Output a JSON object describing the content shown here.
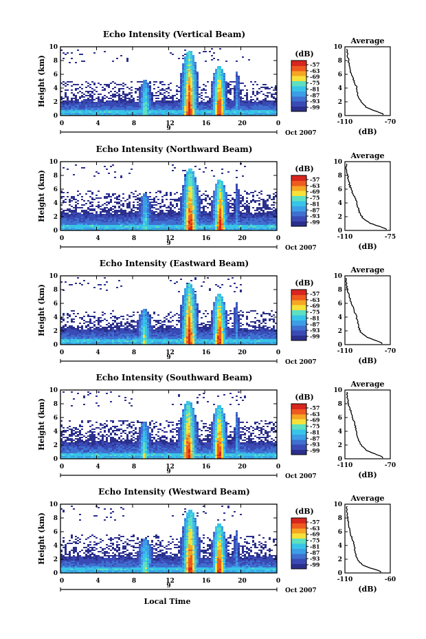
{
  "figure": {
    "x_axis_title": "Local Time",
    "x_ticks": [
      "0",
      "4",
      "8",
      "12",
      "16",
      "20",
      "0"
    ],
    "day_label": "9",
    "date_label": "Oct 2007",
    "y_label": "Height (km)",
    "y_ticks": [
      "0",
      "2",
      "4",
      "6",
      "8",
      "10"
    ],
    "colorbar_unit": "(dB)",
    "colorbar_ticks": [
      "-57",
      "-63",
      "-69",
      "-75",
      "-81",
      "-87",
      "-93",
      "-99"
    ],
    "profile_title": "Average",
    "profile_xlabel": "(dB)",
    "profile_y_ticks": [
      "0",
      "2",
      "4",
      "6",
      "8",
      "10"
    ],
    "colors": {
      "colormap": [
        "#2b2f8c",
        "#3a4ab5",
        "#3f6fd0",
        "#3d9ee6",
        "#38c4e8",
        "#5ee0c0",
        "#f6e13a",
        "#f5a623",
        "#ef5a1f",
        "#d7261e"
      ],
      "background": "#ffffff",
      "axis": "#000000"
    }
  },
  "chart_data": [
    {
      "type": "heatmap",
      "title": "Echo Intensity (Vertical Beam)",
      "xlabel": "Local Time",
      "ylabel": "Height (km)",
      "xlim": [
        0,
        24
      ],
      "ylim": [
        0,
        10
      ],
      "clim": [
        -99,
        -57
      ],
      "base_top_km": 2.3,
      "upper_layer_km": [
        2.4,
        4.9
      ],
      "upper_layer_density": 0.45,
      "cells": [
        {
          "t": 9.4,
          "top": 5.2,
          "w": 0.8,
          "peak": -72
        },
        {
          "t": 14.3,
          "top": 9.5,
          "w": 1.1,
          "peak": -57
        },
        {
          "t": 17.6,
          "top": 7.3,
          "w": 1.0,
          "peak": -57
        },
        {
          "t": 19.6,
          "top": 6.5,
          "w": 0.35,
          "peak": -81
        }
      ]
    },
    {
      "type": "heatmap",
      "title": "Echo Intensity (Northward Beam)",
      "xlabel": "Local Time",
      "ylabel": "Height (km)",
      "xlim": [
        0,
        24
      ],
      "ylim": [
        0,
        10
      ],
      "clim": [
        -99,
        -57
      ],
      "base_top_km": 2.6,
      "upper_layer_km": [
        2.5,
        5.8
      ],
      "upper_layer_density": 0.55,
      "cells": [
        {
          "t": 9.4,
          "top": 5.5,
          "w": 0.8,
          "peak": -75
        },
        {
          "t": 14.4,
          "top": 9.0,
          "w": 1.1,
          "peak": -57
        },
        {
          "t": 17.7,
          "top": 7.5,
          "w": 1.0,
          "peak": -57
        },
        {
          "t": 19.6,
          "top": 6.8,
          "w": 0.35,
          "peak": -84
        }
      ]
    },
    {
      "type": "heatmap",
      "title": "Echo Intensity (Eastward Beam)",
      "xlabel": "Local Time",
      "ylabel": "Height (km)",
      "xlim": [
        0,
        24
      ],
      "ylim": [
        0,
        10
      ],
      "clim": [
        -99,
        -57
      ],
      "base_top_km": 2.5,
      "upper_layer_km": [
        2.4,
        5.0
      ],
      "upper_layer_density": 0.45,
      "cells": [
        {
          "t": 9.3,
          "top": 5.3,
          "w": 0.9,
          "peak": -72
        },
        {
          "t": 14.3,
          "top": 9.0,
          "w": 1.1,
          "peak": -57
        },
        {
          "t": 17.6,
          "top": 7.5,
          "w": 1.0,
          "peak": -57
        },
        {
          "t": 19.5,
          "top": 6.3,
          "w": 0.35,
          "peak": -84
        }
      ]
    },
    {
      "type": "heatmap",
      "title": "Echo Intensity (Southward Beam)",
      "xlabel": "Local Time",
      "ylabel": "Height (km)",
      "xlim": [
        0,
        24
      ],
      "ylim": [
        0,
        10
      ],
      "clim": [
        -99,
        -57
      ],
      "base_top_km": 2.6,
      "upper_layer_km": [
        2.5,
        5.6
      ],
      "upper_layer_density": 0.55,
      "cells": [
        {
          "t": 9.3,
          "top": 5.5,
          "w": 0.8,
          "peak": -72
        },
        {
          "t": 14.2,
          "top": 8.5,
          "w": 1.1,
          "peak": -57
        },
        {
          "t": 17.6,
          "top": 7.8,
          "w": 1.0,
          "peak": -57
        },
        {
          "t": 19.6,
          "top": 6.8,
          "w": 0.35,
          "peak": -81
        }
      ]
    },
    {
      "type": "heatmap",
      "title": "Echo Intensity (Westward Beam)",
      "xlabel": "Local Time",
      "ylabel": "Height (km)",
      "xlim": [
        0,
        24
      ],
      "ylim": [
        0,
        10
      ],
      "clim": [
        -99,
        -57
      ],
      "base_top_km": 2.5,
      "upper_layer_km": [
        2.4,
        5.5
      ],
      "upper_layer_density": 0.5,
      "cells": [
        {
          "t": 9.4,
          "top": 5.0,
          "w": 1.0,
          "peak": -72
        },
        {
          "t": 14.4,
          "top": 9.3,
          "w": 1.1,
          "peak": -57
        },
        {
          "t": 17.6,
          "top": 7.2,
          "w": 1.0,
          "peak": -57
        },
        {
          "t": 19.5,
          "top": 6.3,
          "w": 0.35,
          "peak": -84
        }
      ]
    },
    {
      "type": "line",
      "title": "Average",
      "xlabel": "(dB)",
      "ylabel": "",
      "xlim": [
        -110,
        -70
      ],
      "x_ticks": [
        "-110",
        "-70"
      ],
      "ylim": [
        0,
        10
      ],
      "x": [
        -76,
        -80,
        -85,
        -91,
        -95,
        -98,
        -99,
        -100,
        -102,
        -104,
        -106,
        -107,
        -108
      ],
      "y": [
        0.2,
        0.5,
        0.8,
        1.2,
        1.8,
        2.6,
        3.4,
        4.2,
        5.0,
        5.8,
        7.0,
        8.0,
        9.2
      ]
    },
    {
      "type": "line",
      "title": "Average",
      "xlabel": "(dB)",
      "ylabel": "",
      "xlim": [
        -110,
        -75
      ],
      "x_ticks": [
        "-110",
        "-75"
      ],
      "ylim": [
        0,
        10
      ],
      "x": [
        -78,
        -82,
        -87,
        -92,
        -96,
        -99,
        -100,
        -101,
        -103,
        -105,
        -107,
        -108,
        -109
      ],
      "y": [
        0.2,
        0.5,
        0.8,
        1.2,
        1.8,
        2.6,
        3.4,
        4.2,
        5.0,
        5.8,
        7.0,
        8.0,
        9.2
      ]
    },
    {
      "type": "line",
      "title": "Average",
      "xlabel": "(dB)",
      "ylabel": "",
      "xlim": [
        -110,
        -70
      ],
      "x_ticks": [
        "-110",
        "-70"
      ],
      "ylim": [
        0,
        10
      ],
      "x": [
        -77,
        -81,
        -86,
        -92,
        -96,
        -98,
        -99,
        -100,
        -102,
        -104,
        -106,
        -108,
        -109
      ],
      "y": [
        0.2,
        0.5,
        0.8,
        1.2,
        1.8,
        2.6,
        3.4,
        4.2,
        5.0,
        5.8,
        7.0,
        8.0,
        9.2
      ]
    },
    {
      "type": "line",
      "title": "Average",
      "xlabel": "(dB)",
      "ylabel": "",
      "xlim": [
        -110,
        -70
      ],
      "x_ticks": [
        "-110",
        "-70"
      ],
      "ylim": [
        0,
        10
      ],
      "x": [
        -76,
        -80,
        -85,
        -91,
        -95,
        -98,
        -99,
        -100,
        -101,
        -103,
        -105,
        -107,
        -108
      ],
      "y": [
        0.2,
        0.5,
        0.8,
        1.2,
        1.8,
        2.6,
        3.4,
        4.2,
        5.0,
        5.8,
        7.0,
        8.0,
        9.2
      ]
    },
    {
      "type": "line",
      "title": "Average",
      "xlabel": "(dB)",
      "ylabel": "",
      "xlim": [
        -110,
        -60
      ],
      "x_ticks": [
        "-110",
        "-60"
      ],
      "ylim": [
        0,
        10
      ],
      "x": [
        -70,
        -76,
        -84,
        -91,
        -95,
        -98,
        -99,
        -100,
        -102,
        -104,
        -106,
        -107,
        -108
      ],
      "y": [
        0.2,
        0.5,
        0.8,
        1.2,
        1.8,
        2.6,
        3.4,
        4.2,
        5.0,
        5.8,
        7.0,
        8.0,
        9.2
      ]
    }
  ]
}
